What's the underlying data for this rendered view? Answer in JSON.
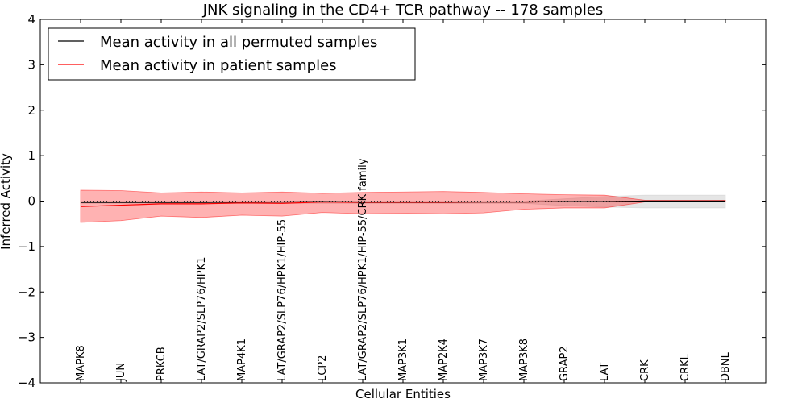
{
  "chart_data": {
    "type": "line",
    "title": "JNK signaling in the CD4+ TCR pathway -- 178 samples",
    "xlabel": "Cellular Entities",
    "ylabel": "Inferred Activity",
    "ylim": [
      -4,
      4
    ],
    "yticks": [
      -4,
      -3,
      -2,
      -1,
      0,
      1,
      2,
      3,
      4
    ],
    "ytick_labels": [
      "−4",
      "−3",
      "−2",
      "−1",
      "0",
      "1",
      "2",
      "3",
      "4"
    ],
    "categories": [
      "MAPK8",
      "JUN",
      "PRKCB",
      "LAT/GRAP2/SLP76/HPK1",
      "MAP4K1",
      "LAT/GRAP2/SLP76/HPK1/HIP-55",
      "LCP2",
      "LAT/GRAP2/SLP76/HPK1/HIP-55/CRK family",
      "MAP3K1",
      "MAP2K4",
      "MAP3K7",
      "MAP3K8",
      "GRAP2",
      "LAT",
      "CRK",
      "CRKL",
      "DBNL"
    ],
    "legend_position": "top-left",
    "series": [
      {
        "name": "Mean activity in all permuted samples",
        "color": "#000000",
        "values": [
          -0.03,
          -0.03,
          -0.03,
          -0.03,
          -0.02,
          -0.02,
          -0.01,
          -0.02,
          -0.02,
          -0.02,
          -0.02,
          -0.02,
          -0.01,
          -0.01,
          0.0,
          0.0,
          0.0
        ],
        "band_upper": [
          0.0,
          0.0,
          0.0,
          0.0,
          0.0,
          0.0,
          0.0,
          0.0,
          0.0,
          0.0,
          0.0,
          0.0,
          0.05,
          0.1,
          0.13,
          0.13,
          0.13
        ],
        "band_lower": [
          -0.05,
          -0.05,
          -0.05,
          -0.05,
          -0.05,
          -0.05,
          -0.05,
          -0.05,
          -0.05,
          -0.05,
          -0.05,
          -0.05,
          -0.1,
          -0.13,
          -0.15,
          -0.15,
          -0.15
        ],
        "band_color": "#cccccc"
      },
      {
        "name": "Mean activity in patient samples",
        "color": "#ff0000",
        "values": [
          -0.12,
          -0.09,
          -0.06,
          -0.06,
          -0.04,
          -0.05,
          -0.02,
          -0.03,
          -0.03,
          -0.03,
          -0.02,
          -0.02,
          -0.01,
          -0.01,
          0.0,
          0.0,
          0.0
        ],
        "band_upper": [
          0.24,
          0.23,
          0.18,
          0.2,
          0.18,
          0.2,
          0.17,
          0.19,
          0.2,
          0.21,
          0.19,
          0.16,
          0.14,
          0.13,
          0.02,
          0.02,
          0.02
        ],
        "band_lower": [
          -0.47,
          -0.43,
          -0.33,
          -0.36,
          -0.31,
          -0.33,
          -0.25,
          -0.28,
          -0.27,
          -0.28,
          -0.26,
          -0.18,
          -0.15,
          -0.15,
          -0.02,
          -0.02,
          -0.02
        ],
        "band_color": "#ff0000",
        "band_opacity": 0.3
      }
    ]
  }
}
